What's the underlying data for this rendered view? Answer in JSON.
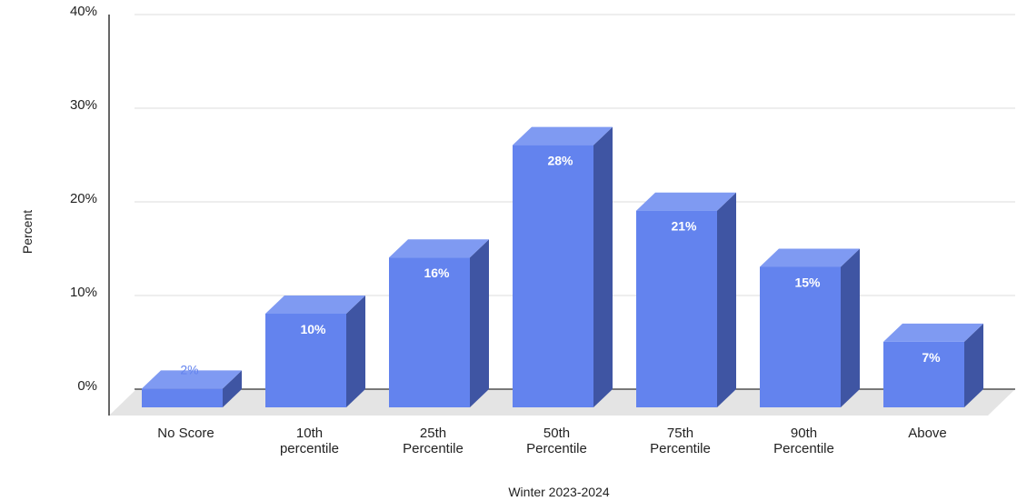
{
  "chart_data": {
    "type": "bar",
    "style": "3d",
    "categories": [
      [
        "No Score"
      ],
      [
        "10th",
        "percentile"
      ],
      [
        "25th",
        "Percentile"
      ],
      [
        "50th",
        "Percentile"
      ],
      [
        "75th",
        "Percentile"
      ],
      [
        "90th",
        "Percentile"
      ],
      [
        "Above"
      ]
    ],
    "values": [
      2,
      10,
      16,
      28,
      21,
      15,
      7
    ],
    "data_labels": [
      "2%",
      "10%",
      "16%",
      "28%",
      "21%",
      "15%",
      "7%"
    ],
    "y_ticks": [
      0,
      10,
      20,
      30,
      40
    ],
    "y_tick_labels": [
      "0%",
      "10%",
      "20%",
      "30%",
      "40%"
    ],
    "ylim": [
      0,
      40
    ],
    "xlabel": "Winter 2023-2024",
    "ylabel": "Percent",
    "grid": true,
    "legend": "none",
    "colors": {
      "front": "#6383ee",
      "top": "#7f9af2",
      "side": "#3f55a3",
      "floor": "#e4e4e4",
      "grid": "#dcdcdc",
      "axis": "#333333",
      "low_label": "#6383ee"
    }
  }
}
